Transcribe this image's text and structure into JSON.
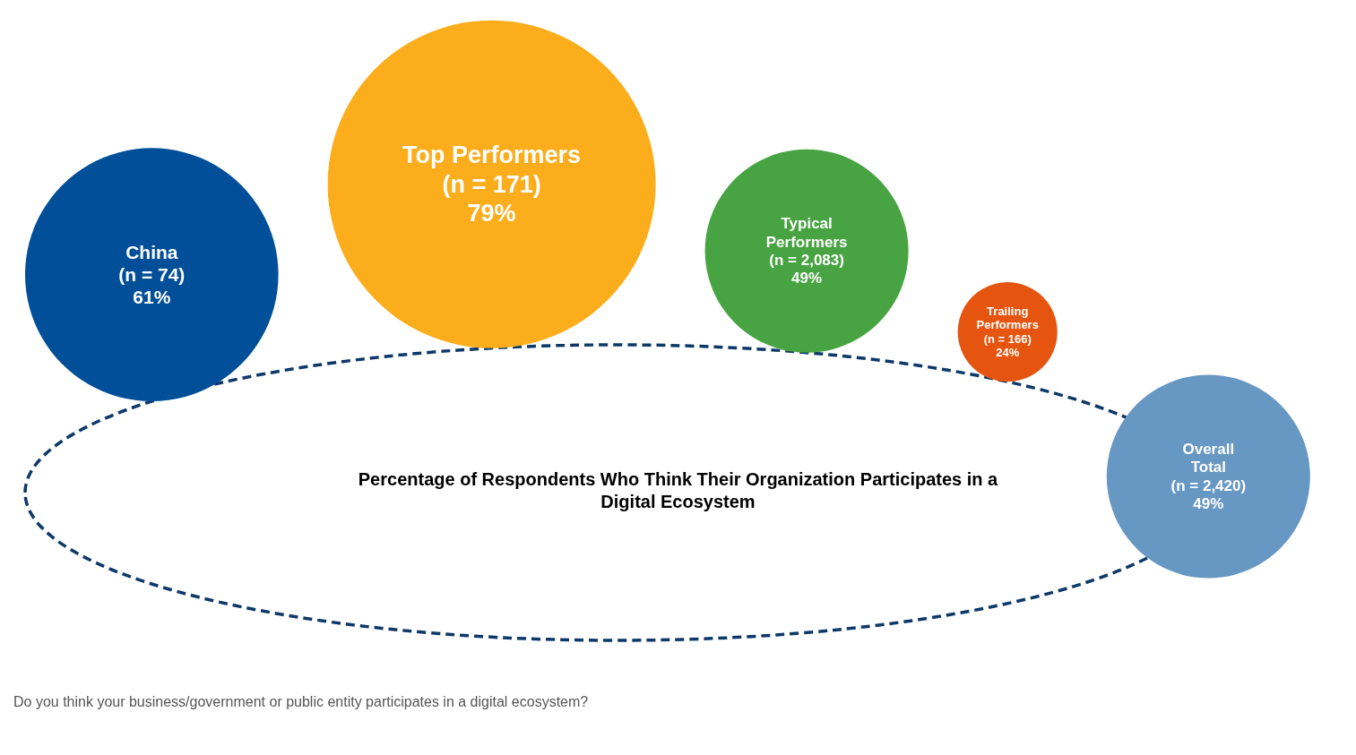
{
  "chart_data": {
    "type": "other",
    "title": "Percentage of Respondents Who Think Their Organization Participates in a\nDigital Ecosystem",
    "categories": [
      "China\n(n = 74)",
      "Top Performers\n(n = 171)",
      "Typical\nPerformers\n(n = 2,083)",
      "Trailing\nPerformers\n(n = 166)",
      "Overall\nTotal\n(n = 2,420)"
    ],
    "values": [
      61,
      79,
      49,
      24,
      49
    ],
    "value_labels": [
      "61%",
      "79%",
      "49%",
      "24%",
      "49%"
    ],
    "colors": [
      "#004f98",
      "#fbad1b",
      "#48a442",
      "#e5550f",
      "#6797c3"
    ],
    "annotations": [
      "Do you think your business/government or public entity participates in a digital ecosystem?"
    ]
  }
}
